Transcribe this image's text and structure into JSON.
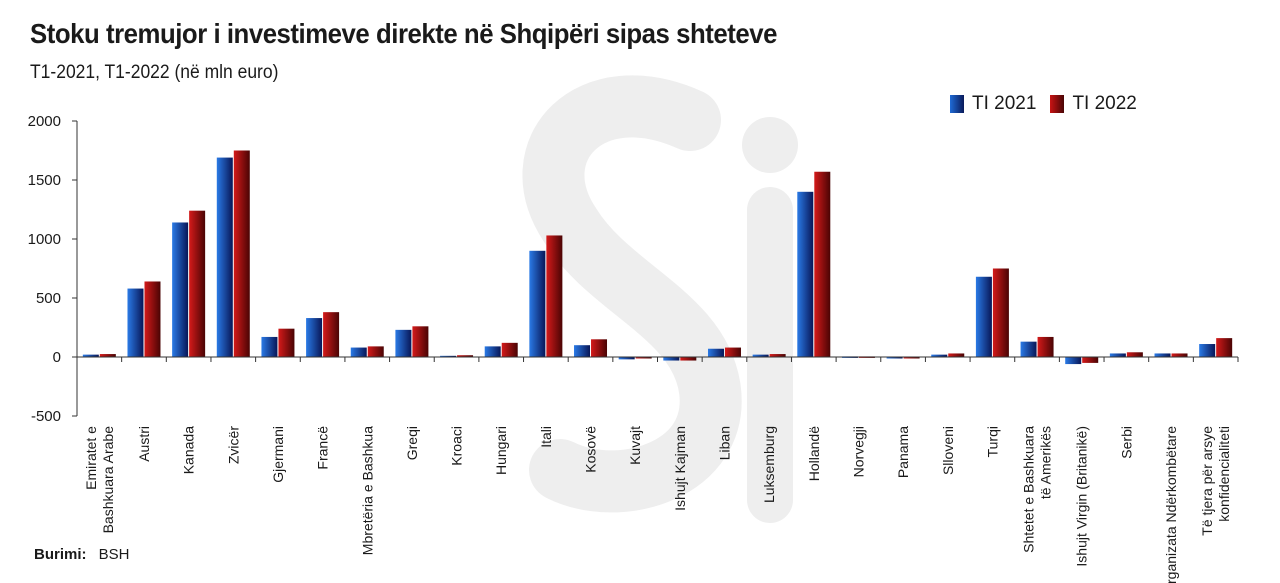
{
  "title": "Stoku tremujor i investimeve direkte në Shqipëri sipas shteteve",
  "subtitle": "T1-2021, T1-2022 (në mln euro)",
  "source": {
    "label": "Burimi:",
    "value": "BSH"
  },
  "colors": {
    "series_a": "#1f6bd6",
    "series_b": "#c81414",
    "watermark": "#ececec"
  },
  "chart_data": {
    "type": "bar",
    "categories": [
      [
        "Emiratet e",
        "Bashkuara Arabe"
      ],
      [
        "Austri"
      ],
      [
        "Kanada"
      ],
      [
        "Zvicër"
      ],
      [
        "Gjermani"
      ],
      [
        "Francë"
      ],
      [
        "Mbretëria e Bashkua"
      ],
      [
        "Greqi"
      ],
      [
        "Kroaci"
      ],
      [
        "Hungari"
      ],
      [
        "Itali"
      ],
      [
        "Kosovë"
      ],
      [
        "Kuvajt"
      ],
      [
        "Ishujt Kajman"
      ],
      [
        "Liban"
      ],
      [
        "Luksemburg"
      ],
      [
        "Hollandë"
      ],
      [
        "Norvegji"
      ],
      [
        "Panama"
      ],
      [
        "Slloveni"
      ],
      [
        "Turqi"
      ],
      [
        "Shtetet e Bashkuara",
        "të Amerikës"
      ],
      [
        "Ishujt Virgin (Britanikë)"
      ],
      [
        "Serbi"
      ],
      [
        "Organizata Ndërkombëtare"
      ],
      [
        "Të tjera për arsye",
        "konfidencialiteti"
      ]
    ],
    "series": [
      {
        "name": "TI 2021",
        "values": [
          20,
          580,
          1140,
          1690,
          170,
          330,
          80,
          230,
          10,
          90,
          900,
          100,
          -20,
          -30,
          70,
          20,
          1400,
          5,
          -5,
          20,
          680,
          130,
          -60,
          30,
          30,
          110
        ]
      },
      {
        "name": "TI 2022",
        "values": [
          25,
          640,
          1240,
          1750,
          240,
          380,
          90,
          260,
          15,
          120,
          1030,
          150,
          -10,
          -30,
          80,
          25,
          1570,
          5,
          -5,
          30,
          750,
          170,
          -50,
          40,
          30,
          160
        ]
      }
    ],
    "ylim": [
      -500,
      2000
    ],
    "yticks": [
      2000,
      1500,
      1000,
      500,
      0,
      -500
    ],
    "legend": "top-right",
    "grid": false,
    "xlabel": "",
    "ylabel": ""
  }
}
